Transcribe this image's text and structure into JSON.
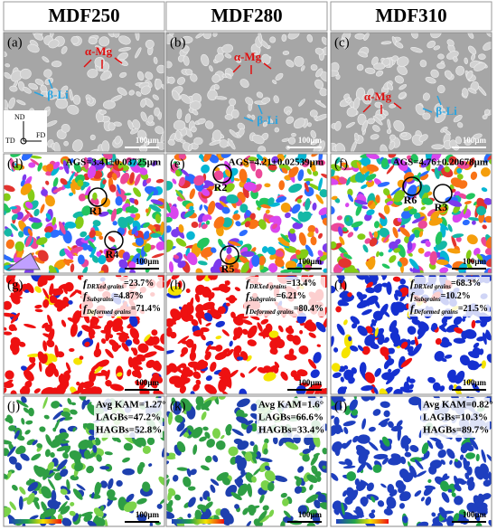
{
  "headers": [
    "MDF250",
    "MDF280",
    "MDF310"
  ],
  "sem": [
    {
      "label": "(a)",
      "alpha": "α-Mg",
      "beta": "β-Li",
      "scale": "100μm"
    },
    {
      "label": "(b)",
      "alpha": "α-Mg",
      "beta": "β-Li",
      "scale": "100μm"
    },
    {
      "label": "(c)",
      "alpha": "α-Mg",
      "beta": "β-Li",
      "scale": "100μm"
    }
  ],
  "axes": {
    "nd": "ND",
    "td": "TD",
    "fd": "FD"
  },
  "ipf": [
    {
      "label": "(d)",
      "ags": "AGS=3.41±0.03725μm",
      "regions": [
        "R1",
        "R4"
      ],
      "scale": "100μm"
    },
    {
      "label": "(e)",
      "ags": "AGS=4.21±0.02539μm",
      "regions": [
        "R2",
        "R5"
      ],
      "scale": "100μm"
    },
    {
      "label": "(f)",
      "ags": "AGS=4.76±0.20678μm",
      "regions": [
        "R6",
        "R3"
      ],
      "scale": "100μm"
    }
  ],
  "gos": [
    {
      "label": "(g)",
      "lines": [
        {
          "f": "f",
          "sub": "DRXed grains",
          "text": "=23.7%"
        },
        {
          "f": "f",
          "sub": "Subgrains",
          "text": "=4.87%"
        },
        {
          "f": "f",
          "sub": "Deformed grains",
          "text": "=71.4%"
        }
      ],
      "scale": "100μm"
    },
    {
      "label": "(h)",
      "lines": [
        {
          "f": "f",
          "sub": "DRXed grains",
          "text": "=13.4%"
        },
        {
          "f": "f",
          "sub": "Subgrains",
          "text": "=6.21%"
        },
        {
          "f": "f",
          "sub": "Deformed grains",
          "text": "=80.4%"
        }
      ],
      "scale": "100μm"
    },
    {
      "label": "(i)",
      "lines": [
        {
          "f": "f",
          "sub": "DRXed grains",
          "text": "=68.3%"
        },
        {
          "f": "f",
          "sub": "Subgrains",
          "text": "=10.2%"
        },
        {
          "f": "f",
          "sub": "Deformed grains",
          "text": "=21.5%"
        }
      ],
      "scale": "100μm"
    }
  ],
  "kam": [
    {
      "label": "(j)",
      "lines": [
        "Avg KAM=1.27°",
        "LAGBs=47.2%",
        "HAGBs=52.8%"
      ],
      "scale": "100μm"
    },
    {
      "label": "(k)",
      "lines": [
        "Avg KAM=1.6°",
        "LAGBs=66.6%",
        "HAGBs=33.4%"
      ],
      "scale": "100μm"
    },
    {
      "label": "(l)",
      "lines": [
        "Avg KAM=0.82°",
        "LAGBs=10.3%",
        "HAGBs=89.7%"
      ],
      "scale": "100μm"
    }
  ]
}
